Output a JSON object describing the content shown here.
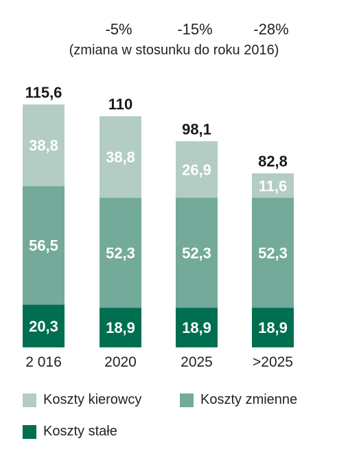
{
  "header": {
    "changes": [
      "-5%",
      "-15%",
      "-28%"
    ],
    "subtitle": "(zmiana w stosunku do roku 2016)"
  },
  "chart_data": {
    "type": "bar",
    "stacked": true,
    "categories": [
      "2 016",
      "2020",
      "2025",
      ">2025"
    ],
    "series": [
      {
        "name": "Koszty stałe",
        "values": [
          20.3,
          18.9,
          18.9,
          18.9
        ],
        "labels": [
          "20,3",
          "18,9",
          "18,9",
          "18,9"
        ],
        "color": "#006e50"
      },
      {
        "name": "Koszty zmienne",
        "values": [
          56.5,
          52.3,
          52.3,
          52.3
        ],
        "labels": [
          "56,5",
          "52,3",
          "52,3",
          "52,3"
        ],
        "color": "#73aa99"
      },
      {
        "name": "Koszty kierowcy",
        "values": [
          38.8,
          38.8,
          26.9,
          11.6
        ],
        "labels": [
          "38,8",
          "38,8",
          "26,9",
          "11,6"
        ],
        "color": "#b3cdc4"
      }
    ],
    "totals": [
      115.6,
      110,
      98.1,
      82.8
    ],
    "total_labels": [
      "115,6",
      "110",
      "98,1",
      "82,8"
    ],
    "grid": false,
    "legend_position": "bottom"
  },
  "legend": {
    "items": [
      {
        "label": "Koszty kierowcy",
        "color": "#b3cdc4"
      },
      {
        "label": "Koszty zmienne",
        "color": "#73aa99"
      },
      {
        "label": "Koszty stałe",
        "color": "#006e50"
      }
    ]
  }
}
